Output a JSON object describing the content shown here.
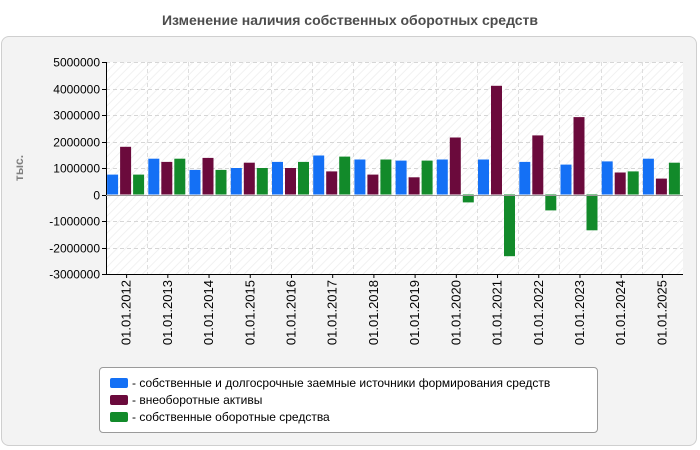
{
  "chart_data": {
    "type": "bar",
    "title": "Изменение наличия собственных оборотных средств",
    "xlabel": "",
    "ylabel": "тыс.",
    "ylim": [
      -3000000,
      5000000
    ],
    "yticks": [
      5000000,
      4000000,
      3000000,
      2000000,
      1000000,
      0,
      -1000000,
      -2000000,
      -3000000
    ],
    "ytick_labels": [
      "5000000",
      "4000000",
      "3000000",
      "2000000",
      "1000000",
      "0",
      "-1000000",
      "-2000000",
      "-3000000"
    ],
    "grid": true,
    "legend_position": "bottom",
    "categories": [
      "01.01.2012",
      "01.01.2013",
      "01.01.2014",
      "01.01.2015",
      "01.01.2016",
      "01.01.2017",
      "01.01.2018",
      "01.01.2019",
      "01.01.2020",
      "01.01.2021",
      "01.01.2022",
      "01.01.2023",
      "01.01.2024",
      "01.01.2025"
    ],
    "series": [
      {
        "name": "- собственные и долгосрочные заемные источники формирования средств",
        "color": "#1470f5",
        "values": [
          750000,
          1350000,
          930000,
          1000000,
          1230000,
          1470000,
          1320000,
          1280000,
          1320000,
          1320000,
          1230000,
          1130000,
          1250000,
          1350000
        ]
      },
      {
        "name": "- внеоборотные активы",
        "color": "#6b0a3c",
        "values": [
          1800000,
          1230000,
          1380000,
          1200000,
          1000000,
          870000,
          750000,
          650000,
          2150000,
          4100000,
          2230000,
          2920000,
          830000,
          600000
        ]
      },
      {
        "name": "- собственные оборотные средства",
        "color": "#128a2a",
        "values": [
          750000,
          1350000,
          930000,
          1000000,
          1230000,
          1430000,
          1320000,
          1280000,
          -300000,
          -2330000,
          -600000,
          -1350000,
          870000,
          1200000
        ]
      }
    ]
  }
}
